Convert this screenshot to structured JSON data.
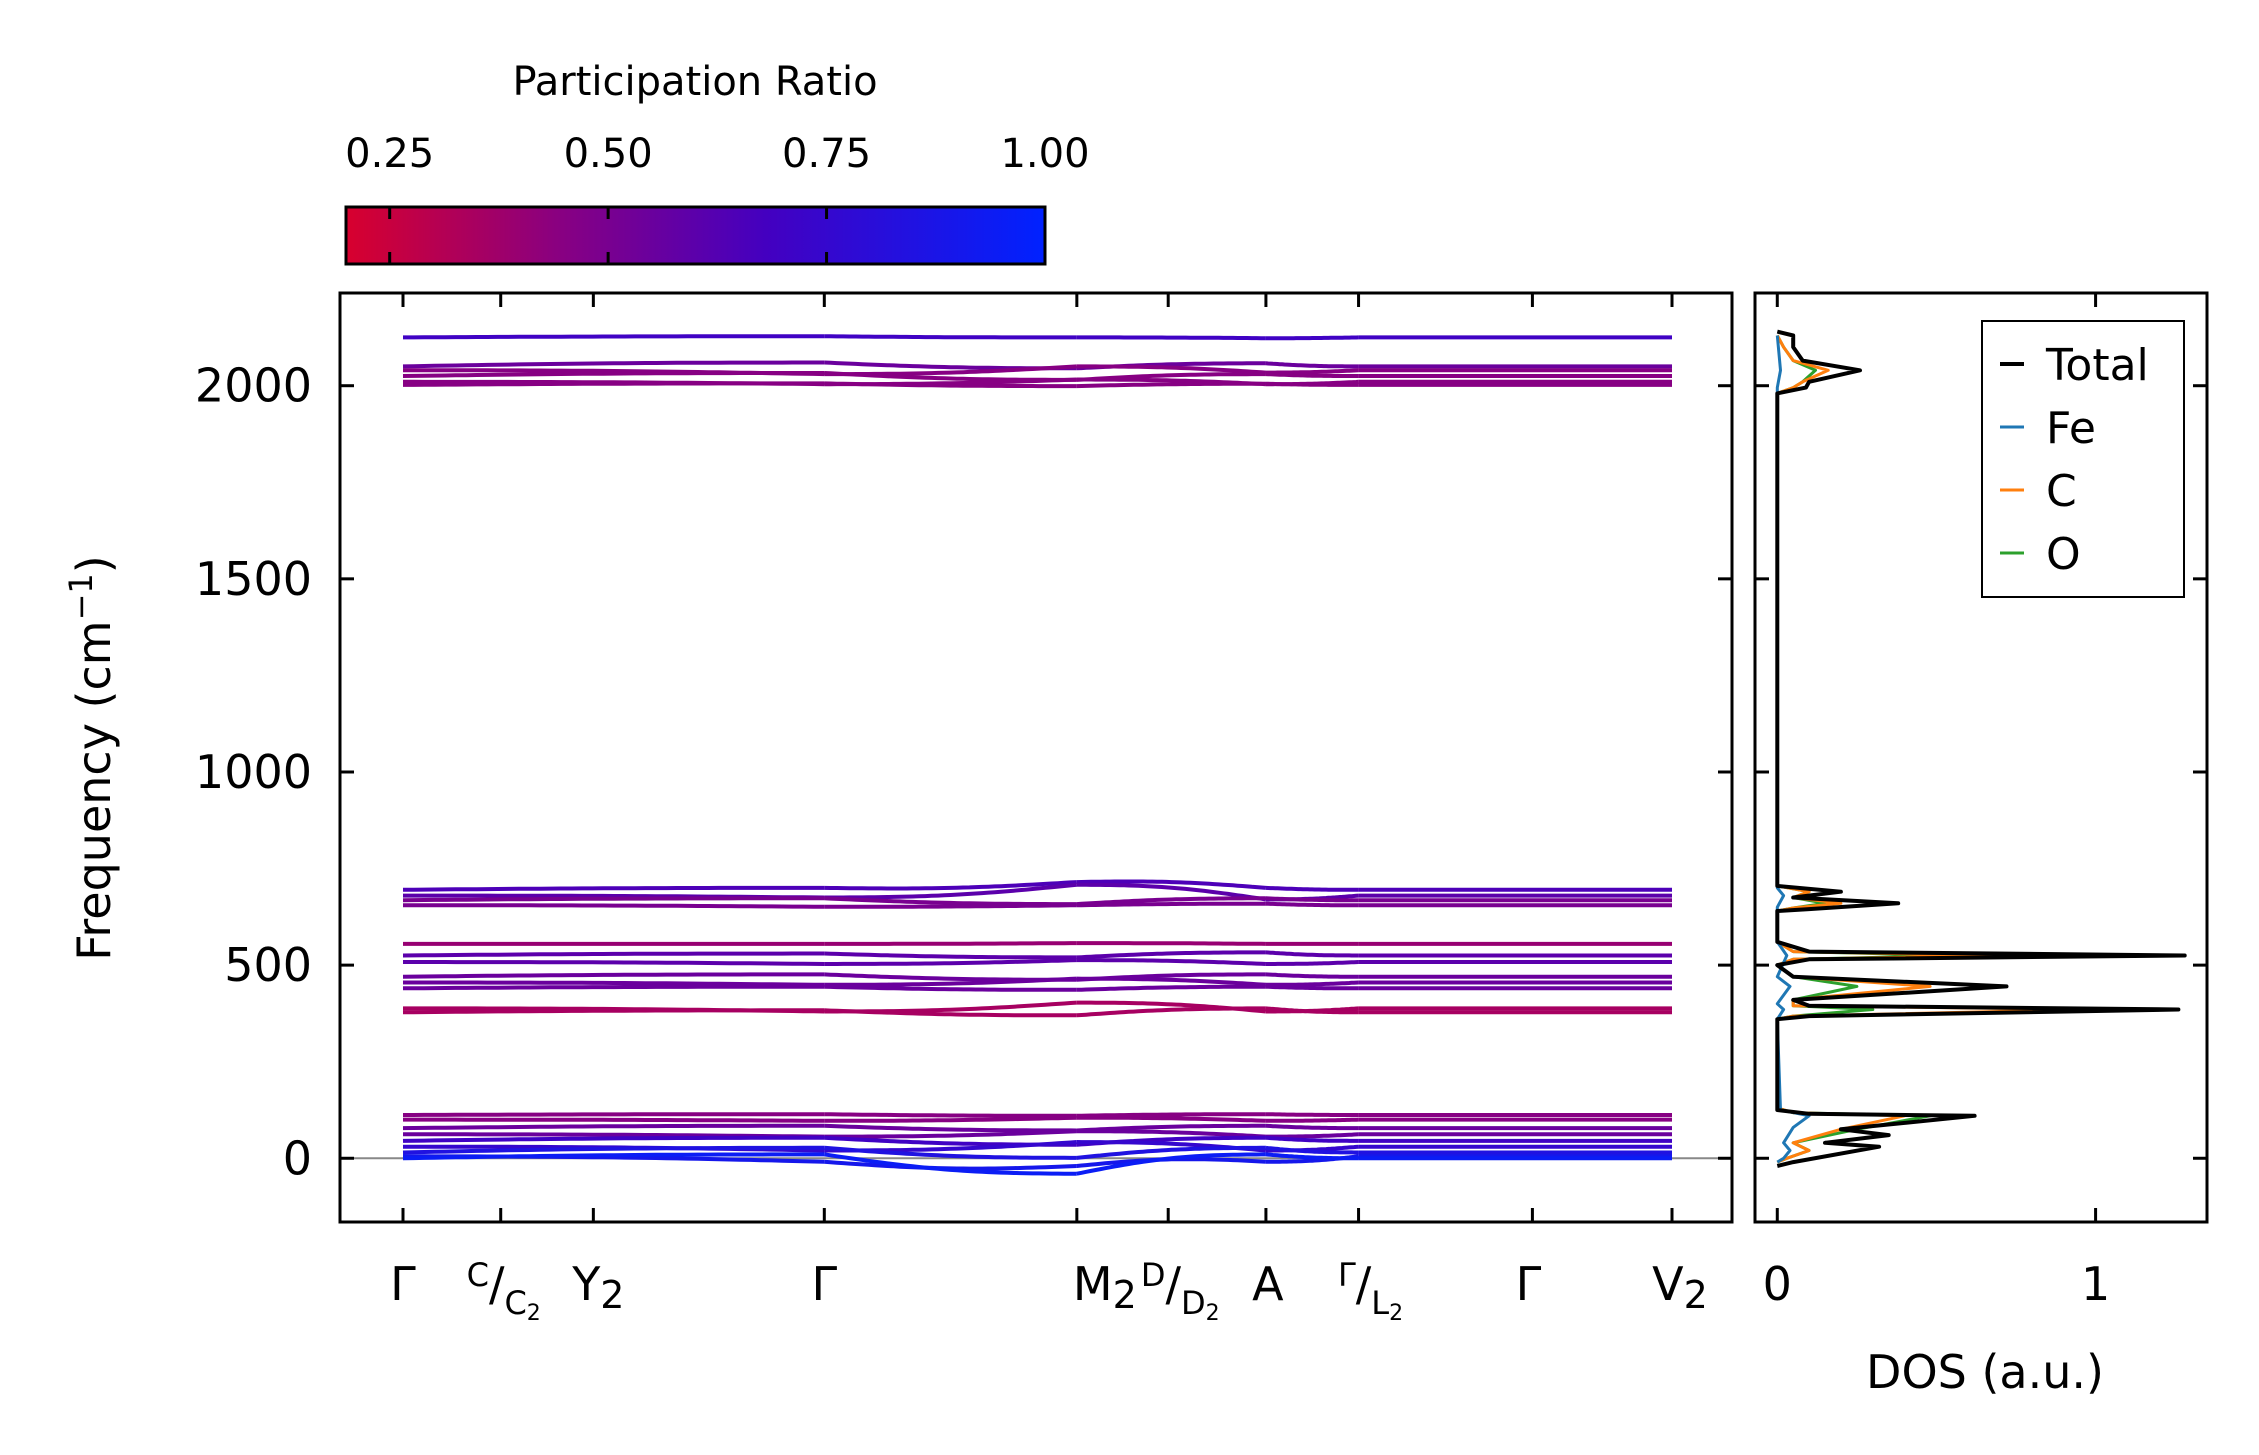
{
  "chart_data": [
    {
      "type": "line",
      "name": "phonon-band-structure",
      "ylabel_main": "Frequency (cm",
      "ylabel_sup": "−1",
      "ylabel_close": ")",
      "ylim": [
        -165,
        2240
      ],
      "yticks": [
        0,
        500,
        1000,
        1500,
        2000
      ],
      "ytick_labels": [
        "0",
        "500",
        "1000",
        "1500",
        "2000"
      ],
      "q_labels": [
        {
          "main": "Γ"
        },
        {
          "sup": "C",
          "slash": "/",
          "sub_main": "C",
          "sub_sub": "2"
        },
        {
          "main": "Y",
          "msub": "2"
        },
        {
          "main": "Γ"
        },
        {
          "main": "M",
          "msub": "2"
        },
        {
          "sup": "D",
          "slash": "/",
          "sub_main": "D",
          "sub_sub": "2"
        },
        {
          "main": "A"
        },
        {
          "sup": "Γ",
          "slash": "/",
          "sub_main": "L",
          "sub_sub": "2"
        },
        {
          "main": "Γ"
        },
        {
          "main": "V",
          "msub": "2"
        }
      ],
      "q_positions": [
        0,
        0.077,
        0.15,
        0.332,
        0.531,
        0.603,
        0.68,
        0.753,
        0.89,
        1.0
      ],
      "colorbar": {
        "label": "Participation Ratio",
        "range": [
          0.2,
          1.0
        ],
        "ticks": [
          0.25,
          0.5,
          0.75,
          1.0
        ],
        "tick_labels": [
          "0.25",
          "0.50",
          "0.75",
          "1.00"
        ],
        "colors": [
          "#d8002e",
          "#0022ff"
        ]
      },
      "bands": [
        {
          "f": 2125,
          "d": [
            0,
            3,
            0,
            -2,
            0
          ],
          "pr": 0.7
        },
        {
          "f": 2050,
          "d": [
            0,
            10,
            -5,
            8,
            0
          ],
          "pr": 0.55
        },
        {
          "f": 2040,
          "d": [
            0,
            -10,
            10,
            -6,
            0
          ],
          "pr": 0.45
        },
        {
          "f": 2025,
          "d": [
            0,
            8,
            -10,
            5,
            0
          ],
          "pr": 0.45
        },
        {
          "f": 2010,
          "d": [
            0,
            -6,
            6,
            -6,
            0
          ],
          "pr": 0.45
        },
        {
          "f": 2002,
          "d": [
            0,
            4,
            -3,
            3,
            0
          ],
          "pr": 0.45
        },
        {
          "f": 695,
          "d": [
            0,
            5,
            20,
            5,
            0
          ],
          "pr": 0.65
        },
        {
          "f": 680,
          "d": [
            0,
            -5,
            28,
            -10,
            0
          ],
          "pr": 0.6
        },
        {
          "f": 668,
          "d": [
            0,
            5,
            -10,
            5,
            0
          ],
          "pr": 0.5
        },
        {
          "f": 655,
          "d": [
            0,
            -4,
            0,
            4,
            0
          ],
          "pr": 0.5
        },
        {
          "f": 555,
          "d": [
            0,
            0,
            2,
            0,
            0
          ],
          "pr": 0.4
        },
        {
          "f": 525,
          "d": [
            0,
            5,
            -5,
            8,
            0
          ],
          "pr": 0.6
        },
        {
          "f": 508,
          "d": [
            0,
            -5,
            5,
            -5,
            0
          ],
          "pr": 0.6
        },
        {
          "f": 470,
          "d": [
            0,
            6,
            -8,
            6,
            0
          ],
          "pr": 0.55
        },
        {
          "f": 455,
          "d": [
            0,
            -6,
            10,
            -6,
            0
          ],
          "pr": 0.55
        },
        {
          "f": 440,
          "d": [
            0,
            4,
            -4,
            4,
            0
          ],
          "pr": 0.55
        },
        {
          "f": 388,
          "d": [
            0,
            -8,
            15,
            -8,
            0
          ],
          "pr": 0.35
        },
        {
          "f": 378,
          "d": [
            0,
            5,
            -8,
            10,
            0
          ],
          "pr": 0.35
        },
        {
          "f": 112,
          "d": [
            0,
            2,
            -2,
            2,
            0
          ],
          "pr": 0.45
        },
        {
          "f": 100,
          "d": [
            0,
            -3,
            5,
            -3,
            0
          ],
          "pr": 0.45
        },
        {
          "f": 78,
          "d": [
            0,
            6,
            -6,
            6,
            0
          ],
          "pr": 0.55
        },
        {
          "f": 62,
          "d": [
            0,
            -6,
            8,
            -6,
            0
          ],
          "pr": 0.55
        },
        {
          "f": 45,
          "d": [
            0,
            8,
            -10,
            8,
            0
          ],
          "pr": 0.7
        },
        {
          "f": 30,
          "d": [
            0,
            -10,
            12,
            -10,
            0
          ],
          "pr": 0.75
        },
        {
          "f": 15,
          "d": [
            0,
            12,
            -14,
            12,
            0
          ],
          "pr": 0.85
        },
        {
          "f": 5,
          "d": [
            0,
            -14,
            -25,
            -14,
            0
          ],
          "pr": 0.9
        },
        {
          "f": 0,
          "d": [
            0,
            10,
            -40,
            10,
            0
          ],
          "pr": 0.95
        }
      ],
      "zero_line": 0
    },
    {
      "type": "line",
      "name": "density-of-states",
      "xlabel": "DOS (a.u.)",
      "xlim": [
        -0.07,
        1.35
      ],
      "xticks": [
        0,
        1
      ],
      "xtick_labels": [
        "0",
        "1"
      ],
      "ylim": [
        -165,
        2240
      ],
      "legend_position": "top-right",
      "series": [
        {
          "name": "Total",
          "color": "#000000",
          "points": [
            [
              0,
              -20
            ],
            [
              0.05,
              -10
            ],
            [
              0.32,
              30
            ],
            [
              0.15,
              40
            ],
            [
              0.35,
              60
            ],
            [
              0.2,
              75
            ],
            [
              0.62,
              110
            ],
            [
              0.1,
              115
            ],
            [
              0,
              125
            ],
            [
              0,
              360
            ],
            [
              0.1,
              368
            ],
            [
              1.26,
              385
            ],
            [
              0.1,
              395
            ],
            [
              0.05,
              410
            ],
            [
              0.72,
              445
            ],
            [
              0.05,
              470
            ],
            [
              0,
              500
            ],
            [
              0.1,
              515
            ],
            [
              1.28,
              525
            ],
            [
              0.1,
              535
            ],
            [
              0,
              560
            ],
            [
              0,
              640
            ],
            [
              0.1,
              645
            ],
            [
              0.38,
              660
            ],
            [
              0.05,
              675
            ],
            [
              0.2,
              690
            ],
            [
              0,
              705
            ],
            [
              0,
              1980
            ],
            [
              0.09,
              1995
            ],
            [
              0.1,
              2010
            ],
            [
              0.26,
              2040
            ],
            [
              0.08,
              2065
            ],
            [
              0.05,
              2100
            ],
            [
              0.05,
              2130
            ],
            [
              0,
              2140
            ]
          ]
        },
        {
          "name": "Fe",
          "color": "#1f77b4",
          "points": [
            [
              0,
              -10
            ],
            [
              0.02,
              0
            ],
            [
              0.04,
              20
            ],
            [
              0.02,
              40
            ],
            [
              0.05,
              80
            ],
            [
              0.1,
              110
            ],
            [
              0.01,
              125
            ],
            [
              0,
              360
            ],
            [
              0.02,
              385
            ],
            [
              0,
              400
            ],
            [
              0.04,
              445
            ],
            [
              0,
              470
            ],
            [
              0.03,
              525
            ],
            [
              0,
              560
            ],
            [
              0,
              650
            ],
            [
              0.02,
              680
            ],
            [
              0,
              700
            ],
            [
              0,
              1995
            ],
            [
              0.01,
              2040
            ],
            [
              0,
              2130
            ]
          ]
        },
        {
          "name": "C",
          "color": "#ff7f0e",
          "points": [
            [
              0,
              -10
            ],
            [
              0.03,
              0
            ],
            [
              0.1,
              20
            ],
            [
              0.05,
              40
            ],
            [
              0.2,
              75
            ],
            [
              0.4,
              110
            ],
            [
              0.05,
              118
            ],
            [
              0,
              130
            ],
            [
              0,
              360
            ],
            [
              0.05,
              368
            ],
            [
              0.99,
              385
            ],
            [
              0.05,
              395
            ],
            [
              0.05,
              410
            ],
            [
              0.48,
              445
            ],
            [
              0.05,
              470
            ],
            [
              0,
              500
            ],
            [
              0.05,
              515
            ],
            [
              0.69,
              525
            ],
            [
              0.05,
              535
            ],
            [
              0,
              560
            ],
            [
              0,
              640
            ],
            [
              0.05,
              648
            ],
            [
              0.2,
              660
            ],
            [
              0.05,
              675
            ],
            [
              0.1,
              690
            ],
            [
              0,
              705
            ],
            [
              0,
              1980
            ],
            [
              0.05,
              1995
            ],
            [
              0.08,
              2010
            ],
            [
              0.16,
              2040
            ],
            [
              0.05,
              2065
            ],
            [
              0.02,
              2100
            ],
            [
              0,
              2130
            ]
          ]
        },
        {
          "name": "O",
          "color": "#2ca02c",
          "points": [
            [
              0,
              -10
            ],
            [
              0.03,
              0
            ],
            [
              0.1,
              20
            ],
            [
              0.05,
              40
            ],
            [
              0.25,
              75
            ],
            [
              0.48,
              110
            ],
            [
              0.05,
              118
            ],
            [
              0,
              130
            ],
            [
              0,
              360
            ],
            [
              0.05,
              368
            ],
            [
              0.3,
              385
            ],
            [
              0.05,
              395
            ],
            [
              0.05,
              410
            ],
            [
              0.25,
              445
            ],
            [
              0.05,
              470
            ],
            [
              0,
              500
            ],
            [
              0.05,
              515
            ],
            [
              0.58,
              525
            ],
            [
              0.05,
              535
            ],
            [
              0,
              560
            ],
            [
              0,
              640
            ],
            [
              0.05,
              648
            ],
            [
              0.15,
              660
            ],
            [
              0.05,
              675
            ],
            [
              0.1,
              690
            ],
            [
              0,
              705
            ],
            [
              0,
              1980
            ],
            [
              0.05,
              1995
            ],
            [
              0.08,
              2010
            ],
            [
              0.12,
              2040
            ],
            [
              0.05,
              2065
            ],
            [
              0.02,
              2100
            ],
            [
              0,
              2130
            ]
          ]
        }
      ]
    }
  ]
}
